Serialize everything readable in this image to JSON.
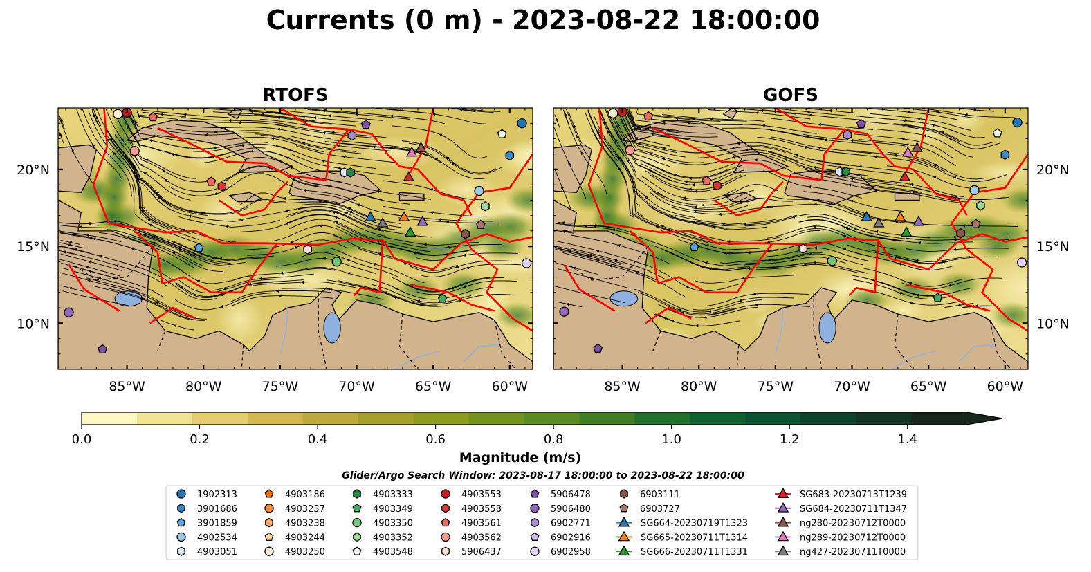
{
  "title": "Currents (0 m) - 2023-08-22 18:00:00",
  "panels": [
    {
      "title": "RTOFS"
    },
    {
      "title": "GOFS"
    }
  ],
  "x_ticks": [
    "85°W",
    "80°W",
    "75°W",
    "70°W",
    "65°W",
    "60°W"
  ],
  "x_tick_lon": [
    -85,
    -80,
    -75,
    -70,
    -65,
    -60
  ],
  "y_ticks": [
    "20°N",
    "15°N",
    "10°N"
  ],
  "y_tick_lat": [
    20,
    15,
    10
  ],
  "extent": {
    "lon": [
      -89.5,
      -58.5
    ],
    "lat": [
      7,
      24
    ]
  },
  "colorbar": {
    "label": "Magnitude (m/s)",
    "ticks": [
      "0.0",
      "0.2",
      "0.4",
      "0.6",
      "0.8",
      "1.0",
      "1.2",
      "1.4"
    ],
    "tick_values": [
      0,
      0.2,
      0.4,
      0.6,
      0.8,
      1.0,
      1.2,
      1.4
    ],
    "range": [
      0,
      1.5
    ],
    "extend": "max",
    "colors": [
      "#fdf7c3",
      "#f1e496",
      "#e3cd6e",
      "#d2b84e",
      "#bdaa3c",
      "#a6a12c",
      "#8f9b1e",
      "#73921c",
      "#5a8a22",
      "#3f7e25",
      "#256f2c",
      "#11612f",
      "#0b5230",
      "#0c432b",
      "#133522",
      "#18291b"
    ]
  },
  "search_window": "Glider/Argo Search Window: 2023-08-17 18:00:00 to 2023-08-22 18:00:00",
  "legend": {
    "columns": [
      [
        {
          "label": "1902313",
          "marker": "circle",
          "color": "#1f77b4"
        },
        {
          "label": "3901686",
          "marker": "hexagon",
          "color": "#3b87c2"
        },
        {
          "label": "3901859",
          "marker": "pentagon",
          "color": "#5ca1d8"
        },
        {
          "label": "4902534",
          "marker": "circle",
          "color": "#9ecae9"
        },
        {
          "label": "4903051",
          "marker": "hexagon",
          "color": "#dbe9f6"
        }
      ],
      [
        {
          "label": "4903186",
          "marker": "pentagon",
          "color": "#e6720b"
        },
        {
          "label": "4903237",
          "marker": "circle",
          "color": "#fd8d3c"
        },
        {
          "label": "4903238",
          "marker": "hexagon",
          "color": "#fdae6b"
        },
        {
          "label": "4903244",
          "marker": "pentagon",
          "color": "#fdd0a2"
        },
        {
          "label": "4903250",
          "marker": "circle",
          "color": "#feead5"
        }
      ],
      [
        {
          "label": "4903333",
          "marker": "hexagon",
          "color": "#238b45"
        },
        {
          "label": "4903349",
          "marker": "pentagon",
          "color": "#41ab5d"
        },
        {
          "label": "4903350",
          "marker": "circle",
          "color": "#74c476"
        },
        {
          "label": "4903352",
          "marker": "hexagon",
          "color": "#a1d99b"
        },
        {
          "label": "4903548",
          "marker": "pentagon",
          "color": "#e5f5e0"
        }
      ],
      [
        {
          "label": "4903553",
          "marker": "circle",
          "color": "#cb181d"
        },
        {
          "label": "4903558",
          "marker": "hexagon",
          "color": "#e03530"
        },
        {
          "label": "4903561",
          "marker": "pentagon",
          "color": "#f06a5e"
        },
        {
          "label": "4903562",
          "marker": "circle",
          "color": "#fc9a90"
        },
        {
          "label": "5906437",
          "marker": "hexagon",
          "color": "#fee0d8"
        }
      ],
      [
        {
          "label": "5906478",
          "marker": "pentagon",
          "color": "#7e52a8"
        },
        {
          "label": "5906480",
          "marker": "circle",
          "color": "#9467bd"
        },
        {
          "label": "6902771",
          "marker": "hexagon",
          "color": "#a88bd2"
        },
        {
          "label": "6902916",
          "marker": "pentagon",
          "color": "#cdb8ea"
        },
        {
          "label": "6902958",
          "marker": "circle",
          "color": "#e3d3f5"
        }
      ],
      [
        {
          "label": "6903111",
          "marker": "hexagon",
          "color": "#8c564b"
        },
        {
          "label": "6903727",
          "marker": "pentagon",
          "color": "#a9776a"
        },
        {
          "label": "SG664-20230719T1323",
          "marker": "triangle-line",
          "color": "#1f77b4"
        },
        {
          "label": "SG665-20230711T1314",
          "marker": "triangle-line",
          "color": "#ff7f0e"
        },
        {
          "label": "SG666-20230711T1331",
          "marker": "triangle-line",
          "color": "#2ca02c"
        }
      ],
      [
        {
          "label": "SG683-20230713T1239",
          "marker": "triangle-line",
          "color": "#d62728"
        },
        {
          "label": "SG684-20230711T1347",
          "marker": "triangle-line",
          "color": "#9467bd"
        },
        {
          "label": "ng280-20230712T0000",
          "marker": "triangle-line",
          "color": "#8c564b"
        },
        {
          "label": "ng289-20230712T0000",
          "marker": "triangle-line",
          "color": "#e377c2"
        },
        {
          "label": "ng427-20230711T0000",
          "marker": "triangle-line",
          "color": "#7f7f7f"
        }
      ]
    ]
  },
  "floats": [
    {
      "id": "1902313",
      "lon": -59.2,
      "lat": 23.0
    },
    {
      "id": "3901686",
      "lon": -60.0,
      "lat": 20.9
    },
    {
      "id": "4902534",
      "lon": -62.0,
      "lat": 18.6
    },
    {
      "id": "3901859",
      "lon": -80.3,
      "lat": 14.9
    },
    {
      "id": "4903051",
      "lon": -70.8,
      "lat": 19.8
    },
    {
      "id": "4903250",
      "lon": -85.6,
      "lat": 23.6
    },
    {
      "id": "4903553",
      "lon": -85.0,
      "lat": 23.7
    },
    {
      "id": "4903562",
      "lon": -84.5,
      "lat": 21.2
    },
    {
      "id": "4903561",
      "lon": -83.3,
      "lat": 23.4
    },
    {
      "id": "4903558",
      "lon": -78.8,
      "lat": 18.9
    },
    {
      "id": "4903561b",
      "lon": -79.5,
      "lat": 19.2
    },
    {
      "id": "5906437",
      "lon": -73.2,
      "lat": 14.8
    },
    {
      "id": "4903350",
      "lon": -71.3,
      "lat": 14.0
    },
    {
      "id": "4903333",
      "lon": -70.4,
      "lat": 19.8
    },
    {
      "id": "4903349",
      "lon": -64.4,
      "lat": 11.6
    },
    {
      "id": "4903352",
      "lon": -61.6,
      "lat": 17.6
    },
    {
      "id": "4903548",
      "lon": -60.5,
      "lat": 22.3
    },
    {
      "id": "5906478",
      "lon": -69.4,
      "lat": 22.9
    },
    {
      "id": "6902771",
      "lon": -70.3,
      "lat": 22.2
    },
    {
      "id": "5906480",
      "lon": -88.8,
      "lat": 10.7
    },
    {
      "id": "5906478b",
      "lon": -86.6,
      "lat": 8.3
    },
    {
      "id": "6902958",
      "lon": -58.9,
      "lat": 13.9
    },
    {
      "id": "6903111",
      "lon": -62.9,
      "lat": 15.8
    },
    {
      "id": "6903727",
      "lon": -61.9,
      "lat": 16.4
    }
  ],
  "gliders": [
    {
      "id": "SG664",
      "lon": -69.1,
      "lat": 16.9,
      "color": "#1f77b4"
    },
    {
      "id": "SG665",
      "lon": -66.9,
      "lat": 16.9,
      "color": "#ff7f0e"
    },
    {
      "id": "SG666",
      "lon": -66.5,
      "lat": 15.9,
      "color": "#2ca02c"
    },
    {
      "id": "SG683",
      "lon": -66.6,
      "lat": 19.5,
      "color": "#d62728"
    },
    {
      "id": "SG684",
      "lon": -65.7,
      "lat": 16.6,
      "color": "#9467bd"
    },
    {
      "id": "ng280",
      "lon": -65.8,
      "lat": 21.4,
      "color": "#8c564b"
    },
    {
      "id": "ng289",
      "lon": -66.4,
      "lat": 21.1,
      "color": "#e377c2"
    },
    {
      "id": "ng427",
      "lon": -68.3,
      "lat": 16.5,
      "color": "#7f7f7f"
    }
  ]
}
